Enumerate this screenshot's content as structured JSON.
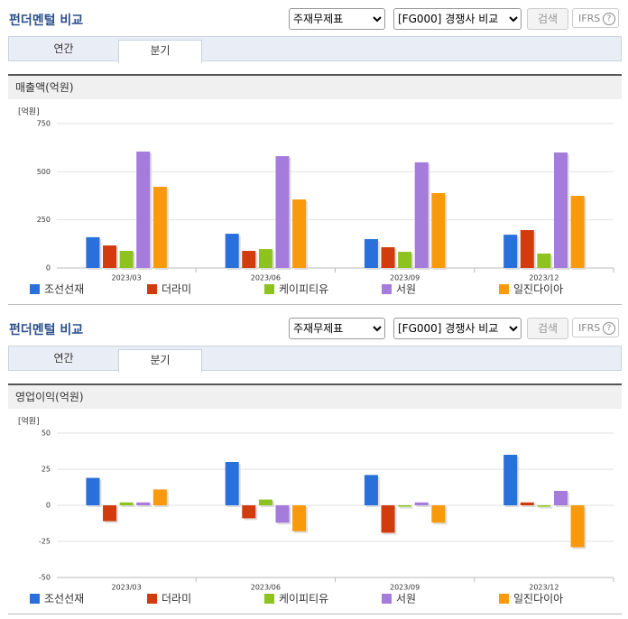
{
  "panels": [
    {
      "title": "펀더멘털 비교",
      "statement_select": "주재무제표",
      "peer_select": "[FG000] 경쟁사 비교",
      "search_button": "검색",
      "ifrs": "IFRS",
      "help_icon": "?",
      "tabs": [
        "연간",
        "분기"
      ],
      "section_title": "매출액(억원)"
    },
    {
      "title": "펀더멘털 비교",
      "statement_select": "주재무제표",
      "peer_select": "[FG000] 경쟁사 비교",
      "search_button": "검색",
      "ifrs": "IFRS",
      "help_icon": "?",
      "tabs": [
        "연간",
        "분기"
      ],
      "section_title": "영업이익(억원)"
    }
  ],
  "chart_data": [
    {
      "type": "bar",
      "y_unit_label": "[억원]",
      "categories": [
        "2023/03",
        "2023/06",
        "2023/09",
        "2023/12"
      ],
      "series": [
        {
          "name": "조선선재",
          "color": "#2970db",
          "values": [
            160,
            178,
            150,
            173
          ]
        },
        {
          "name": "더라미",
          "color": "#d13b0e",
          "values": [
            117,
            89,
            108,
            197
          ]
        },
        {
          "name": "케이피티유",
          "color": "#8dc21f",
          "values": [
            89,
            98,
            84,
            75
          ]
        },
        {
          "name": "서원",
          "color": "#a57bdb",
          "values": [
            605,
            581,
            549,
            600
          ]
        },
        {
          "name": "일진다이아",
          "color": "#f99a0c",
          "values": [
            422,
            356,
            389,
            375
          ]
        }
      ],
      "ylim": [
        0,
        750
      ],
      "yticks": [
        0,
        250,
        500,
        750
      ],
      "grid": true,
      "legend": "bottom"
    },
    {
      "type": "bar",
      "y_unit_label": "[억원]",
      "categories": [
        "2023/03",
        "2023/06",
        "2023/09",
        "2023/12"
      ],
      "series": [
        {
          "name": "조선선재",
          "color": "#2970db",
          "values": [
            19,
            30,
            21,
            35
          ]
        },
        {
          "name": "더라미",
          "color": "#d13b0e",
          "values": [
            -11,
            -9,
            -19,
            2
          ]
        },
        {
          "name": "케이피티유",
          "color": "#8dc21f",
          "values": [
            2,
            4,
            -1,
            -1
          ]
        },
        {
          "name": "서원",
          "color": "#a57bdb",
          "values": [
            2,
            -12,
            2,
            10
          ]
        },
        {
          "name": "일진다이아",
          "color": "#f99a0c",
          "values": [
            11,
            -18,
            -12,
            -29
          ]
        }
      ],
      "ylim": [
        -50,
        50
      ],
      "yticks": [
        -50,
        -25,
        0,
        25,
        50
      ],
      "grid": true,
      "legend": "bottom"
    }
  ]
}
